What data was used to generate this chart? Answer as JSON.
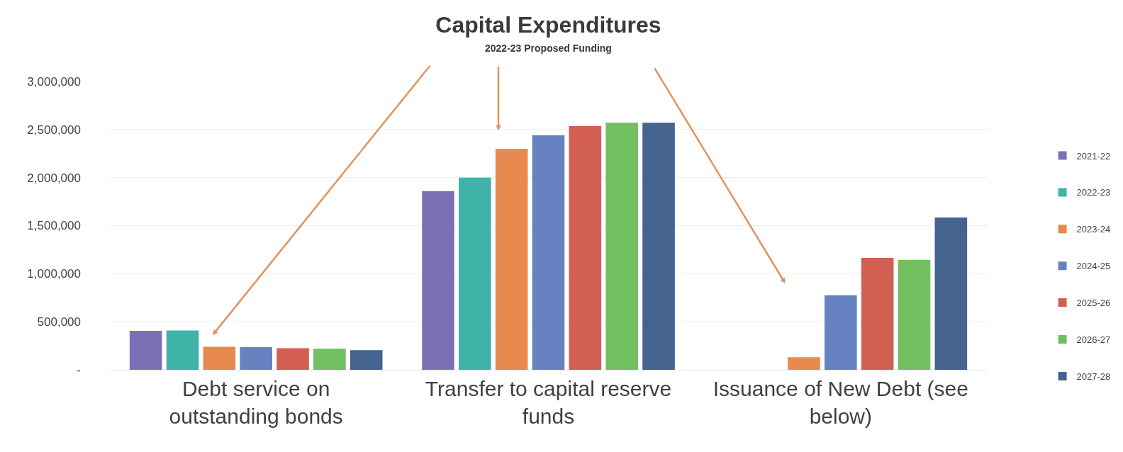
{
  "chart_data": {
    "type": "bar",
    "title": "Capital Expenditures",
    "subtitle": "2022-23 Proposed Funding",
    "categories": [
      "Debt service on\noutstanding bonds",
      "Transfer to capital reserve\nfunds",
      "Issuance of New Debt (see\nbelow)"
    ],
    "series": [
      {
        "name": "2021-22",
        "color": "#7b72b5",
        "values": [
          405000,
          1860000,
          null
        ]
      },
      {
        "name": "2022-23",
        "color": "#3fb3a8",
        "values": [
          410000,
          2000000,
          null
        ]
      },
      {
        "name": "2023-24",
        "color": "#e8894f",
        "values": [
          240000,
          2300000,
          130000
        ]
      },
      {
        "name": "2024-25",
        "color": "#6682c0",
        "values": [
          235000,
          2440000,
          775000
        ]
      },
      {
        "name": "2025-26",
        "color": "#d35f52",
        "values": [
          225000,
          2535000,
          1165000
        ]
      },
      {
        "name": "2026-27",
        "color": "#72bf5f",
        "values": [
          220000,
          2570000,
          1145000
        ]
      },
      {
        "name": "2027-28",
        "color": "#44648f",
        "values": [
          205000,
          2570000,
          1585000
        ]
      }
    ],
    "ylim": [
      0,
      3000000
    ],
    "yticks": [
      {
        "value": 0,
        "label": "-"
      },
      {
        "value": 500000,
        "label": "500,000"
      },
      {
        "value": 1000000,
        "label": "1,000,000"
      },
      {
        "value": 1500000,
        "label": "1,500,000"
      },
      {
        "value": 2000000,
        "label": "2,000,000"
      },
      {
        "value": 2500000,
        "label": "2,500,000"
      },
      {
        "value": 3000000,
        "label": "3,000,000"
      }
    ],
    "grid": "y",
    "legend": "right"
  }
}
